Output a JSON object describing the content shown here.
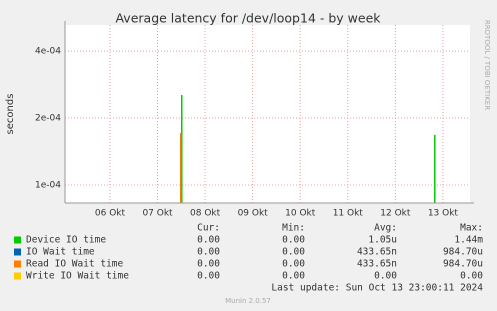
{
  "chart_data": {
    "type": "spike",
    "title": "Average latency for /dev/loop14 - by week",
    "y_label": "seconds",
    "side_label": "RRDTOOL / TOBI OETIKER",
    "log_scale": true,
    "grid": true,
    "ylim": [
      8.3e-05,
      0.000524
    ],
    "yticks": [
      {
        "value": 0.0001,
        "label": "1e-04"
      },
      {
        "value": 0.0002,
        "label": "2e-04"
      },
      {
        "value": 0.0004,
        "label": "4e-04"
      }
    ],
    "xlim": [
      5.055,
      13.57
    ],
    "xticks": [
      {
        "value": 6,
        "label": "06 Okt"
      },
      {
        "value": 7,
        "label": "07 Okt"
      },
      {
        "value": 8,
        "label": "08 Okt"
      },
      {
        "value": 9,
        "label": "09 Okt"
      },
      {
        "value": 10,
        "label": "10 Okt"
      },
      {
        "value": 11,
        "label": "11 Okt"
      },
      {
        "value": 12,
        "label": "12 Okt"
      },
      {
        "value": 13,
        "label": "13 Okt"
      }
    ],
    "stat_headers": [
      "Cur:",
      "Min:",
      "Avg:",
      "Max:"
    ],
    "series": [
      {
        "name": "Device IO time",
        "color": "#00cc00",
        "x": [
          7.51,
          12.83
        ],
        "values": [
          0.000254,
          0.000168
        ],
        "stats": [
          "0.00",
          "0.00",
          "1.05u",
          "1.44m"
        ]
      },
      {
        "name": "IO Wait time",
        "color": "#0066b3",
        "x": [
          7.49
        ],
        "values": [
          0.000171
        ],
        "stats": [
          "0.00",
          "0.00",
          "433.65n",
          "984.70u"
        ]
      },
      {
        "name": "Read IO Wait time",
        "color": "#ff8000",
        "x": [
          7.49
        ],
        "values": [
          0.000171
        ],
        "stats": [
          "0.00",
          "0.00",
          "433.65n",
          "984.70u"
        ]
      },
      {
        "name": "Write IO Wait time",
        "color": "#ffcc00",
        "x": [],
        "values": [],
        "stats": [
          "0.00",
          "0.00",
          "0.00",
          "0.00"
        ]
      }
    ],
    "last_update": "Last update: Sun Oct 13 23:00:11 2024",
    "footer": "Munin 2.0.57"
  }
}
